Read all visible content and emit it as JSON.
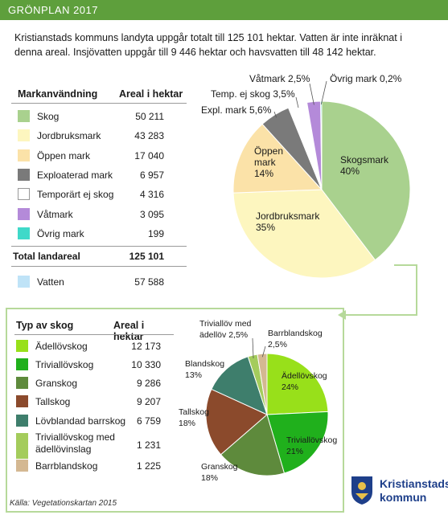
{
  "header": {
    "title": "GRÖNPLAN 2017"
  },
  "intro": "Kristianstads kommuns landyta uppgår totalt till 125 101 hektar. Vatten är inte inräknat i denna areal. Insjövatten uppgår till 9 446 hektar och havsvatten till 48 142 hektar.",
  "land_table": {
    "col1": "Markanvändning",
    "col2": "Areal i hektar",
    "rows": [
      {
        "label": "Skog",
        "value": "50 211",
        "color": "#a9d18e"
      },
      {
        "label": "Jordbruksmark",
        "value": "43 283",
        "color": "#fdf6bf"
      },
      {
        "label": "Öppen mark",
        "value": "17 040",
        "color": "#fbe2a8"
      },
      {
        "label": "Exploaterad mark",
        "value": "6 957",
        "color": "#7a7a7a"
      },
      {
        "label": "Temporärt ej skog",
        "value": "4 316",
        "color": "#ffffff"
      },
      {
        "label": "Våtmark",
        "value": "3 095",
        "color": "#b48ad9"
      },
      {
        "label": "Övrig mark",
        "value": "199",
        "color": "#3fd9c9"
      }
    ],
    "total_label": "Total landareal",
    "total_value": "125 101",
    "water": {
      "label": "Vatten",
      "value": "57 588",
      "color": "#bfe3f7"
    }
  },
  "forest_table": {
    "col1": "Typ av skog",
    "col2": "Areal i hektar",
    "rows": [
      {
        "label": "Ädellövskog",
        "value": "12 173",
        "color": "#98e01a"
      },
      {
        "label": "Triviallövskog",
        "value": "10 330",
        "color": "#20b01c"
      },
      {
        "label": "Granskog",
        "value": "9 286",
        "color": "#5e8a3c"
      },
      {
        "label": "Tallskog",
        "value": "9 207",
        "color": "#8b4a2c"
      },
      {
        "label": "Lövblandad barrskog",
        "value": "6 759",
        "color": "#3e7e6c"
      },
      {
        "label": "Triviallövskog med ädellövinslag",
        "label_lines": [
          "Triviallövskog med",
          "ädellövinslag"
        ],
        "value": "1 231",
        "color": "#a4cc5c"
      },
      {
        "label": "Barrblandskog",
        "value": "1 225",
        "color": "#d4b892"
      }
    ]
  },
  "source": "Källa: Vegetationskartan 2015",
  "logo": {
    "line1": "Kristianstads",
    "line2": "kommun"
  },
  "chart_data": [
    {
      "type": "pie",
      "title": "",
      "slices": [
        {
          "name": "Skogsmark",
          "value": 40,
          "label": "Skogsmark\n40%",
          "color": "#a9d18e"
        },
        {
          "name": "Jordbruksmark",
          "value": 35,
          "label": "Jordbruksmark\n35%",
          "color": "#fdf6bf"
        },
        {
          "name": "Öppen mark",
          "value": 14,
          "label": "Öppen\nmark\n14%",
          "color": "#fbe2a8"
        },
        {
          "name": "Expl. mark",
          "value": 5.6,
          "label": "Expl. mark 5,6%",
          "color": "#7a7a7a"
        },
        {
          "name": "Temp. ej skog",
          "value": 3.5,
          "label": "Temp. ej skog 3,5%",
          "color": "#ffffff"
        },
        {
          "name": "Våtmark",
          "value": 2.5,
          "label": "Våtmark 2,5%",
          "color": "#b48ad9"
        },
        {
          "name": "Övrig mark",
          "value": 0.2,
          "label": "Övrig mark 0,2%",
          "color": "#3fd9c9"
        }
      ]
    },
    {
      "type": "pie",
      "title": "",
      "slices": [
        {
          "name": "Ädellövskog",
          "value": 24,
          "label": "Ädellövskog\n24%",
          "color": "#98e01a"
        },
        {
          "name": "Triviallövskog",
          "value": 21,
          "label": "Triviallövskog\n21%",
          "color": "#20b01c"
        },
        {
          "name": "Granskog",
          "value": 18,
          "label": "Granskog\n18%",
          "color": "#5e8a3c"
        },
        {
          "name": "Tallskog",
          "value": 18,
          "label": "Tallskog\n18%",
          "color": "#8b4a2c"
        },
        {
          "name": "Blandskog",
          "value": 13,
          "label": "Blandskog\n13%",
          "color": "#3e7e6c"
        },
        {
          "name": "Triviallöv med ädellöv",
          "value": 2.5,
          "label": "Triviallöv med\nädellöv 2,5%",
          "color": "#a4cc5c"
        },
        {
          "name": "Barrblandskog",
          "value": 2.5,
          "label": "Barrblandskog\n2,5%",
          "color": "#d4b892"
        }
      ]
    }
  ]
}
